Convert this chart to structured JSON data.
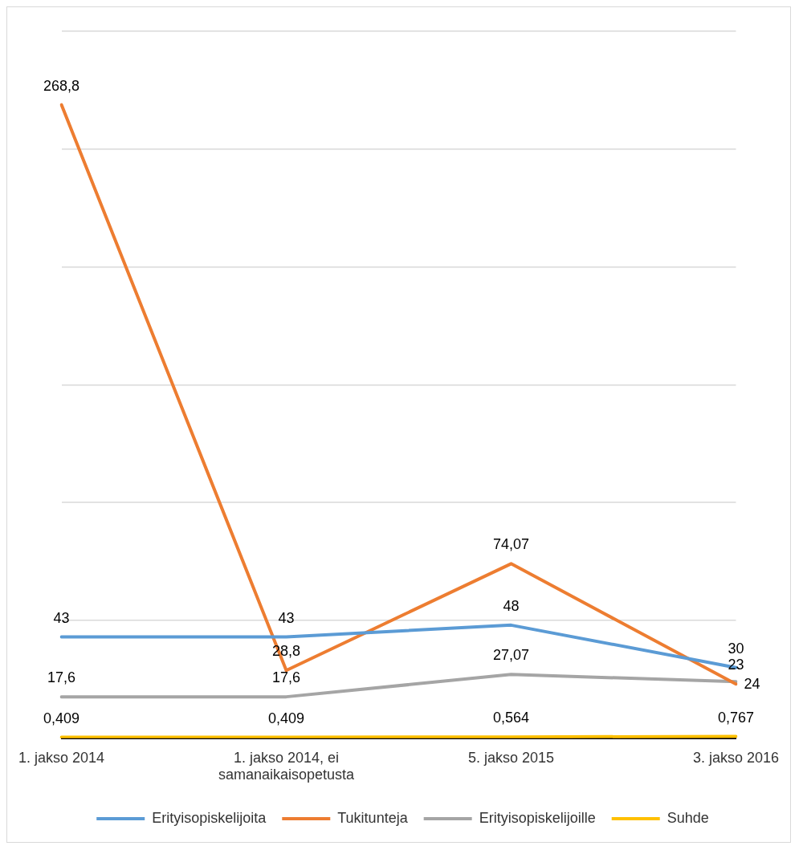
{
  "chart_data": {
    "type": "line",
    "categories": [
      "1. jakso 2014",
      "1. jakso 2014, ei samanaikaisopetusta",
      "5. jakso 2015",
      "3. jakso 2016"
    ],
    "series": [
      {
        "name": "Erityisopiskelijoita",
        "color": "#5b9bd5",
        "values": [
          43,
          43,
          48,
          30
        ],
        "value_labels": [
          "43",
          "43",
          "48",
          "30"
        ]
      },
      {
        "name": "Tukitunteja",
        "color": "#ed7d31",
        "values": [
          268.8,
          28.8,
          74.07,
          23
        ],
        "value_labels": [
          "268,8",
          "28,8",
          "74,07",
          "23"
        ]
      },
      {
        "name": "Erityisopiskelijoille",
        "color": "#a5a5a5",
        "values": [
          17.6,
          17.6,
          27.07,
          24
        ],
        "value_labels": [
          "17,6",
          "17,6",
          "27,07",
          "24"
        ]
      },
      {
        "name": "Suhde",
        "color": "#ffc000",
        "values": [
          0.409,
          0.409,
          0.564,
          0.767
        ],
        "value_labels": [
          "0,409",
          "0,409",
          "0,564",
          "0,767"
        ]
      }
    ],
    "ylim": [
      0,
      300
    ],
    "yticks": [
      0,
      50,
      100,
      150,
      200,
      250,
      300
    ],
    "tick_labels": "x",
    "grid": "y",
    "legend": "bottom",
    "marker": "none"
  }
}
